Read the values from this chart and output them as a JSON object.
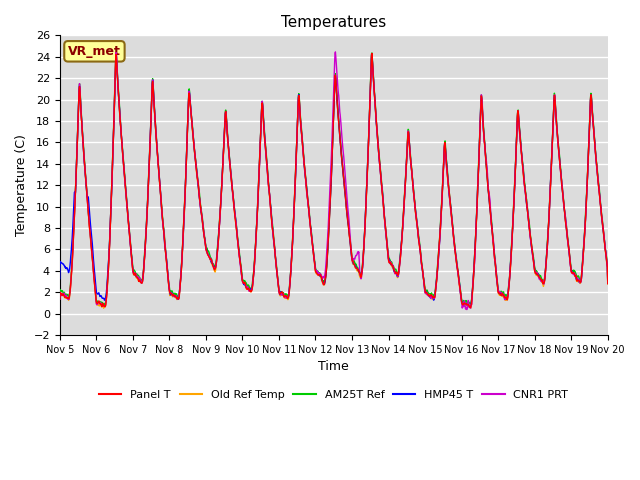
{
  "title": "Temperatures",
  "xlabel": "Time",
  "ylabel": "Temperature (C)",
  "ylim": [
    -2,
    26
  ],
  "xlim": [
    0,
    15
  ],
  "x_tick_labels": [
    "Nov 5",
    "Nov 6",
    "Nov 7",
    "Nov 8",
    "Nov 9",
    "Nov 10",
    "Nov 11",
    "Nov 12",
    "Nov 13",
    "Nov 14",
    "Nov 15",
    "Nov 16",
    "Nov 17",
    "Nov 18",
    "Nov 19",
    "Nov 20"
  ],
  "annotation_text": "VR_met",
  "annotation_color": "#8B0000",
  "annotation_bg": "#FFFF99",
  "bg_color": "#DCDCDC",
  "legend_labels": [
    "Panel T",
    "Old Ref Temp",
    "AM25T Ref",
    "HMP45 T",
    "CNR1 PRT"
  ],
  "legend_colors": [
    "#FF0000",
    "#FFA500",
    "#00CC00",
    "#0000FF",
    "#CC00CC"
  ],
  "line_width": 1.0,
  "day_peaks": [
    22,
    25,
    22.5,
    21.5,
    19.5,
    20.5,
    21,
    23,
    25,
    17.5,
    16.5,
    21,
    19.5,
    21
  ],
  "day_mins": [
    2,
    1,
    4,
    2,
    6,
    3,
    2,
    4,
    5,
    5,
    2,
    1,
    2,
    4
  ]
}
